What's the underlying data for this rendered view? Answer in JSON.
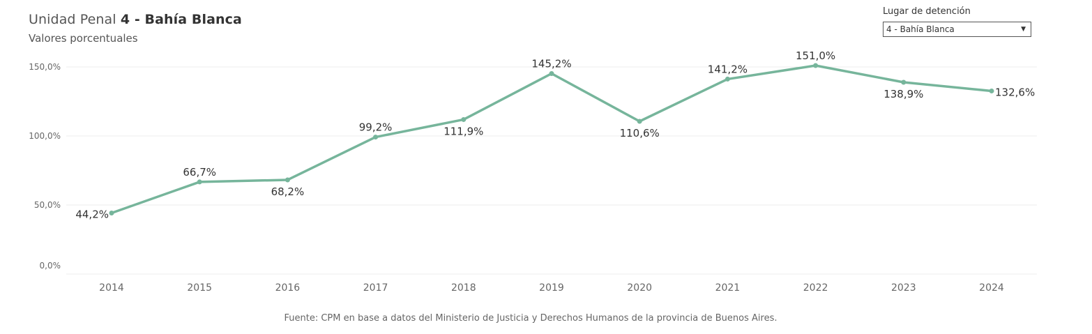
{
  "header": {
    "title_prefix": "Unidad Penal ",
    "title_bold": "4 - Bahía Blanca",
    "subtitle": "Valores porcentuales"
  },
  "filter": {
    "label": "Lugar de detención",
    "value": "4 - Bahía Blanca",
    "arrow": "▼"
  },
  "footer": {
    "source": "Fuente: CPM en base a datos del Ministerio de Justicia y Derechos Humanos de la provincia de Buenos Aires."
  },
  "colors": {
    "line": "#76b59b",
    "grid": "#ececec",
    "axis_text": "#666666",
    "label_text": "#333333"
  },
  "chart_data": {
    "type": "line",
    "title": "Unidad Penal 4 - Bahía Blanca",
    "subtitle": "Valores porcentuales",
    "xlabel": "",
    "ylabel": "",
    "x": [
      "2014",
      "2015",
      "2016",
      "2017",
      "2018",
      "2019",
      "2020",
      "2021",
      "2022",
      "2023",
      "2024"
    ],
    "series": [
      {
        "name": "4 - Bahía Blanca",
        "values": [
          44.2,
          66.7,
          68.2,
          99.2,
          111.9,
          145.2,
          110.6,
          141.2,
          151.0,
          138.9,
          132.6
        ],
        "labels": [
          "44,2%",
          "66,7%",
          "68,2%",
          "99,2%",
          "111,9%",
          "145,2%",
          "110,6%",
          "141,2%",
          "151,0%",
          "138,9%",
          "132,6%"
        ],
        "label_positions": [
          "left",
          "above",
          "below",
          "above",
          "below",
          "above",
          "below",
          "above",
          "above",
          "below",
          "right"
        ]
      }
    ],
    "ylim": [
      0,
      155
    ],
    "yticks": [
      0,
      50,
      100,
      150
    ],
    "ytick_labels": [
      "0,0%",
      "50,0%",
      "100,0%",
      "150,0%"
    ],
    "grid": true
  }
}
